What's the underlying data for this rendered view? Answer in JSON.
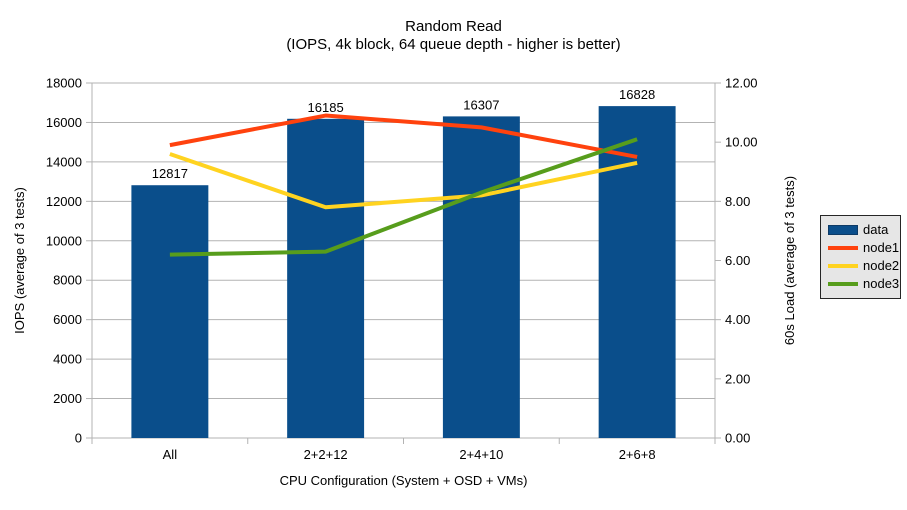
{
  "header": {
    "title": "Random Read",
    "subtitle": "(IOPS, 4k block, 64 queue depth - higher is better)"
  },
  "colors": {
    "bar": "#0a4e8b",
    "node1": "#ff420e",
    "node2": "#ffd320",
    "node3": "#579d1c",
    "grid": "#b3b3b3",
    "text": "#000000",
    "legend_bg": "#e6e6e6",
    "legend_border": "#262626"
  },
  "chart_data": {
    "type": "combo-bar-line",
    "title": "Random Read",
    "subtitle": "(IOPS, 4k block, 64 queue depth - higher is better)",
    "categories": [
      "All",
      "2+2+12",
      "2+4+10",
      "2+6+8"
    ],
    "series": [
      {
        "name": "data",
        "type": "bar",
        "axis": "left",
        "color_key": "bar",
        "values": [
          12817,
          16185,
          16307,
          16828
        ],
        "labels": [
          "12817",
          "16185",
          "16307",
          "16828"
        ]
      },
      {
        "name": "node1",
        "type": "line",
        "axis": "right",
        "color_key": "node1",
        "values": [
          9.9,
          10.9,
          10.5,
          9.5
        ]
      },
      {
        "name": "node2",
        "type": "line",
        "axis": "right",
        "color_key": "node2",
        "values": [
          9.6,
          7.8,
          8.2,
          9.3
        ]
      },
      {
        "name": "node3",
        "type": "line",
        "axis": "right",
        "color_key": "node3",
        "values": [
          6.2,
          6.3,
          8.3,
          10.1
        ]
      }
    ],
    "left_axis": {
      "label": "IOPS (average of 3 tests)",
      "min": 0,
      "max": 18000,
      "step": 2000,
      "ticks": [
        "0",
        "2000",
        "4000",
        "6000",
        "8000",
        "10000",
        "12000",
        "14000",
        "16000",
        "18000"
      ]
    },
    "right_axis": {
      "label": "60s Load (average of 3 tests)",
      "min": 0,
      "max": 12,
      "step": 2,
      "ticks": [
        "0.00",
        "2.00",
        "4.00",
        "6.00",
        "8.00",
        "10.00",
        "12.00"
      ]
    },
    "x_axis": {
      "label": "CPU Configuration (System + OSD + VMs)"
    },
    "legend": {
      "position": "right",
      "entries": [
        {
          "label": "data",
          "color_key": "bar",
          "swatch": "box"
        },
        {
          "label": "node1",
          "color_key": "node1",
          "swatch": "line"
        },
        {
          "label": "node2",
          "color_key": "node2",
          "swatch": "line"
        },
        {
          "label": "node3",
          "color_key": "node3",
          "swatch": "line"
        }
      ]
    },
    "grid": "horizontal"
  }
}
